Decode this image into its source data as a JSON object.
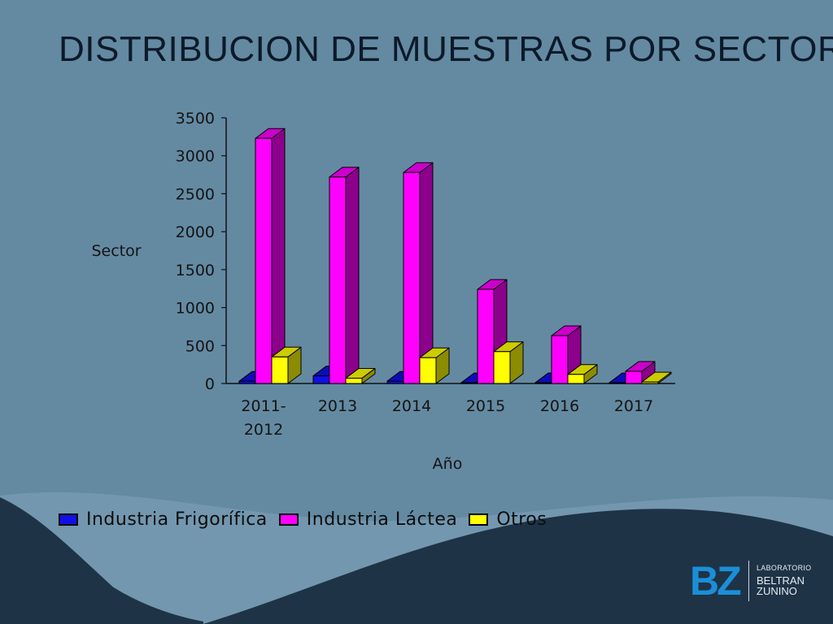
{
  "slide": {
    "title": "DISTRIBUCION DE MUESTRAS POR SECTOR",
    "colors": {
      "background": "#648aa2",
      "wave_dark": "#1f3346",
      "wave_light": "#7fa3ba"
    }
  },
  "logo": {
    "mark": "BZ",
    "top_text": "LABORATORIO",
    "line1": "BELTRAN",
    "line2": "ZUNINO",
    "color": "#1a8fd8"
  },
  "chart_data": {
    "type": "bar",
    "style": "3d-clustered-column",
    "title": "",
    "xlabel": "Año",
    "ylabel": "Sector",
    "categories": [
      "2011-2012",
      "2013",
      "2014",
      "2015",
      "2016",
      "2017"
    ],
    "category_label_lines": [
      [
        "2011-",
        "2012"
      ],
      [
        "2013"
      ],
      [
        "2014"
      ],
      [
        "2015"
      ],
      [
        "2016"
      ],
      [
        "2017"
      ]
    ],
    "ylim": [
      0,
      3500
    ],
    "yticks": [
      "0",
      "500",
      "1000",
      "1500",
      "2000",
      "2500",
      "3000",
      "3500"
    ],
    "grid": false,
    "legend_position": "bottom",
    "series": [
      {
        "name": "Industria Frigorífica",
        "color": "#1010e6",
        "values": [
          30,
          100,
          30,
          10,
          10,
          10
        ]
      },
      {
        "name": "Industria Láctea",
        "color": "#ff00ff",
        "values": [
          3230,
          2720,
          2780,
          1240,
          630,
          160
        ]
      },
      {
        "name": "Otros",
        "color": "#ffff00",
        "values": [
          350,
          70,
          340,
          420,
          120,
          20
        ]
      }
    ]
  }
}
